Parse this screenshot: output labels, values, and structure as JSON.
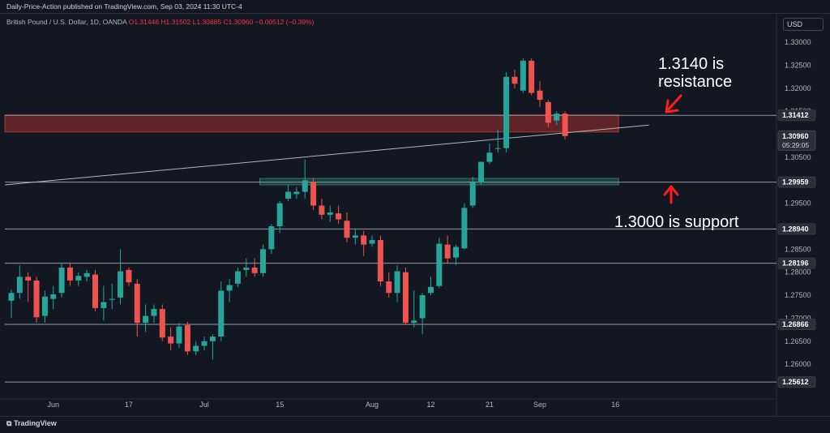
{
  "header": {
    "published": "Daily-Price-Action published on TradingView.com, Sep 03, 2024 11:30 UTC-4",
    "symbol": "British Pound / U.S. Dollar, 1D, OANDA",
    "ohlc": "O1.31446 H1.31502 L1.30885 C1.30960 −0.00512 (−0.39%)",
    "currency": "USD"
  },
  "footer": {
    "brand": "TradingView",
    "logo_icon": "tradingview-logo-icon"
  },
  "annotations": {
    "resistance_line1": "1.3140 is",
    "resistance_line2": "resistance",
    "support": "1.3000 is support",
    "resistance_arrow_icon": "arrow-down-left-icon",
    "support_arrow_icon": "arrow-up-icon"
  },
  "colors": {
    "up": "#26a69a",
    "down": "#ef5350",
    "resistance_zone": "#7a2a2a",
    "support_zone": "#1f4e47",
    "background": "#131722"
  },
  "chart_data": {
    "type": "candlestick",
    "ylim": [
      1.2535,
      1.3325
    ],
    "y_ticks": [
      1.33,
      1.325,
      1.32,
      1.315,
      1.31,
      1.305,
      1.3,
      1.295,
      1.29,
      1.285,
      1.28,
      1.275,
      1.27,
      1.265,
      1.26
    ],
    "y_tick_labels": [
      "1.33000",
      "1.32500",
      "1.32000",
      "1.31500",
      "1.31000",
      "1.30500",
      "1.30000",
      "1.29500",
      "1.29000",
      "1.28500",
      "1.28000",
      "1.27500",
      "1.27000",
      "1.26500",
      "1.26000"
    ],
    "x_labels": [
      {
        "label": "Jun",
        "index": 5
      },
      {
        "label": "17",
        "index": 14
      },
      {
        "label": "Jul",
        "index": 23
      },
      {
        "label": "15",
        "index": 32
      },
      {
        "label": "Aug",
        "index": 43
      },
      {
        "label": "12",
        "index": 50
      },
      {
        "label": "21",
        "index": 57
      },
      {
        "label": "Sep",
        "index": 63
      },
      {
        "label": "16",
        "index": 72
      }
    ],
    "price_labels": [
      {
        "value": 1.31412,
        "label": "1.31412"
      },
      {
        "value": 1.3096,
        "label": "1.30960",
        "sub": "05:29:05",
        "current": true
      },
      {
        "value": 1.29959,
        "label": "1.29959"
      },
      {
        "value": 1.2894,
        "label": "1.28940"
      },
      {
        "value": 1.28196,
        "label": "1.28196"
      },
      {
        "value": 1.26866,
        "label": "1.26866"
      },
      {
        "value": 1.25612,
        "label": "1.25612"
      }
    ],
    "horizontal_lines": [
      1.31412,
      1.29959,
      1.2894,
      1.28196,
      1.26866,
      1.25612
    ],
    "zones": [
      {
        "name": "resistance",
        "from": 1.3105,
        "to": 1.3142,
        "start_index": 0,
        "end_index": 72
      },
      {
        "name": "support",
        "from": 1.299,
        "to": 1.3004,
        "start_index": 30,
        "end_index": 72
      }
    ],
    "trendline": [
      {
        "index": 0,
        "value": 1.299
      },
      {
        "index": 76,
        "value": 1.312
      }
    ],
    "candles": [
      {
        "o": 1.2738,
        "h": 1.2762,
        "l": 1.27,
        "c": 1.2755
      },
      {
        "o": 1.2755,
        "h": 1.2815,
        "l": 1.2742,
        "c": 1.279
      },
      {
        "o": 1.279,
        "h": 1.28,
        "l": 1.2735,
        "c": 1.2782
      },
      {
        "o": 1.2782,
        "h": 1.279,
        "l": 1.269,
        "c": 1.2702
      },
      {
        "o": 1.2705,
        "h": 1.276,
        "l": 1.269,
        "c": 1.2747
      },
      {
        "o": 1.2742,
        "h": 1.277,
        "l": 1.272,
        "c": 1.2752
      },
      {
        "o": 1.2755,
        "h": 1.282,
        "l": 1.2745,
        "c": 1.281
      },
      {
        "o": 1.281,
        "h": 1.282,
        "l": 1.277,
        "c": 1.2782
      },
      {
        "o": 1.2782,
        "h": 1.28,
        "l": 1.277,
        "c": 1.2792
      },
      {
        "o": 1.279,
        "h": 1.2805,
        "l": 1.278,
        "c": 1.2798
      },
      {
        "o": 1.2795,
        "h": 1.2805,
        "l": 1.2715,
        "c": 1.2722
      },
      {
        "o": 1.2722,
        "h": 1.277,
        "l": 1.2695,
        "c": 1.2735
      },
      {
        "o": 1.274,
        "h": 1.2775,
        "l": 1.272,
        "c": 1.2742
      },
      {
        "o": 1.2745,
        "h": 1.285,
        "l": 1.273,
        "c": 1.2802
      },
      {
        "o": 1.2805,
        "h": 1.281,
        "l": 1.277,
        "c": 1.2778
      },
      {
        "o": 1.2775,
        "h": 1.2785,
        "l": 1.266,
        "c": 1.269
      },
      {
        "o": 1.269,
        "h": 1.273,
        "l": 1.267,
        "c": 1.2705
      },
      {
        "o": 1.2705,
        "h": 1.273,
        "l": 1.269,
        "c": 1.272
      },
      {
        "o": 1.272,
        "h": 1.273,
        "l": 1.265,
        "c": 1.2658
      },
      {
        "o": 1.266,
        "h": 1.268,
        "l": 1.263,
        "c": 1.2645
      },
      {
        "o": 1.2645,
        "h": 1.269,
        "l": 1.2635,
        "c": 1.2682
      },
      {
        "o": 1.2685,
        "h": 1.2692,
        "l": 1.262,
        "c": 1.2628
      },
      {
        "o": 1.2628,
        "h": 1.265,
        "l": 1.262,
        "c": 1.264
      },
      {
        "o": 1.264,
        "h": 1.266,
        "l": 1.263,
        "c": 1.265
      },
      {
        "o": 1.265,
        "h": 1.2665,
        "l": 1.261,
        "c": 1.266
      },
      {
        "o": 1.266,
        "h": 1.278,
        "l": 1.265,
        "c": 1.276
      },
      {
        "o": 1.276,
        "h": 1.2785,
        "l": 1.2735,
        "c": 1.2772
      },
      {
        "o": 1.2775,
        "h": 1.281,
        "l": 1.2768,
        "c": 1.2802
      },
      {
        "o": 1.2805,
        "h": 1.283,
        "l": 1.279,
        "c": 1.281
      },
      {
        "o": 1.281,
        "h": 1.283,
        "l": 1.279,
        "c": 1.2798
      },
      {
        "o": 1.2798,
        "h": 1.286,
        "l": 1.279,
        "c": 1.285
      },
      {
        "o": 1.285,
        "h": 1.2905,
        "l": 1.284,
        "c": 1.29
      },
      {
        "o": 1.29,
        "h": 1.2955,
        "l": 1.2885,
        "c": 1.295
      },
      {
        "o": 1.296,
        "h": 1.299,
        "l": 1.2955,
        "c": 1.2975
      },
      {
        "o": 1.297,
        "h": 1.2985,
        "l": 1.296,
        "c": 1.2975
      },
      {
        "o": 1.2975,
        "h": 1.3045,
        "l": 1.296,
        "c": 1.3
      },
      {
        "o": 1.2995,
        "h": 1.3005,
        "l": 1.2935,
        "c": 1.2945
      },
      {
        "o": 1.2945,
        "h": 1.296,
        "l": 1.2915,
        "c": 1.2925
      },
      {
        "o": 1.2925,
        "h": 1.2945,
        "l": 1.291,
        "c": 1.293
      },
      {
        "o": 1.2928,
        "h": 1.2945,
        "l": 1.2905,
        "c": 1.2915
      },
      {
        "o": 1.2912,
        "h": 1.293,
        "l": 1.2865,
        "c": 1.2875
      },
      {
        "o": 1.2875,
        "h": 1.2895,
        "l": 1.286,
        "c": 1.288
      },
      {
        "o": 1.288,
        "h": 1.289,
        "l": 1.2835,
        "c": 1.286
      },
      {
        "o": 1.2862,
        "h": 1.288,
        "l": 1.2855,
        "c": 1.287
      },
      {
        "o": 1.287,
        "h": 1.288,
        "l": 1.277,
        "c": 1.278
      },
      {
        "o": 1.278,
        "h": 1.28,
        "l": 1.2745,
        "c": 1.2755
      },
      {
        "o": 1.2755,
        "h": 1.2815,
        "l": 1.2735,
        "c": 1.2802
      },
      {
        "o": 1.28,
        "h": 1.281,
        "l": 1.2685,
        "c": 1.269
      },
      {
        "o": 1.269,
        "h": 1.276,
        "l": 1.268,
        "c": 1.2695
      },
      {
        "o": 1.27,
        "h": 1.2755,
        "l": 1.2665,
        "c": 1.275
      },
      {
        "o": 1.2755,
        "h": 1.279,
        "l": 1.275,
        "c": 1.2768
      },
      {
        "o": 1.277,
        "h": 1.2875,
        "l": 1.2765,
        "c": 1.2862
      },
      {
        "o": 1.286,
        "h": 1.288,
        "l": 1.282,
        "c": 1.283
      },
      {
        "o": 1.2832,
        "h": 1.286,
        "l": 1.2815,
        "c": 1.2855
      },
      {
        "o": 1.2852,
        "h": 1.295,
        "l": 1.285,
        "c": 1.294
      },
      {
        "o": 1.2945,
        "h": 1.3008,
        "l": 1.294,
        "c": 1.2995
      },
      {
        "o": 1.2995,
        "h": 1.304,
        "l": 1.299,
        "c": 1.304
      },
      {
        "o": 1.304,
        "h": 1.308,
        "l": 1.3035,
        "c": 1.306
      },
      {
        "o": 1.307,
        "h": 1.311,
        "l": 1.306,
        "c": 1.307
      },
      {
        "o": 1.307,
        "h": 1.3235,
        "l": 1.306,
        "c": 1.3225
      },
      {
        "o": 1.3225,
        "h": 1.324,
        "l": 1.32,
        "c": 1.321
      },
      {
        "o": 1.3195,
        "h": 1.3265,
        "l": 1.319,
        "c": 1.326
      },
      {
        "o": 1.326,
        "h": 1.3265,
        "l": 1.3185,
        "c": 1.319
      },
      {
        "o": 1.3195,
        "h": 1.3215,
        "l": 1.316,
        "c": 1.3175
      },
      {
        "o": 1.317,
        "h": 1.3175,
        "l": 1.3115,
        "c": 1.3125
      },
      {
        "o": 1.313,
        "h": 1.315,
        "l": 1.312,
        "c": 1.3145
      },
      {
        "o": 1.3145,
        "h": 1.315,
        "l": 1.3089,
        "c": 1.3096
      }
    ]
  }
}
